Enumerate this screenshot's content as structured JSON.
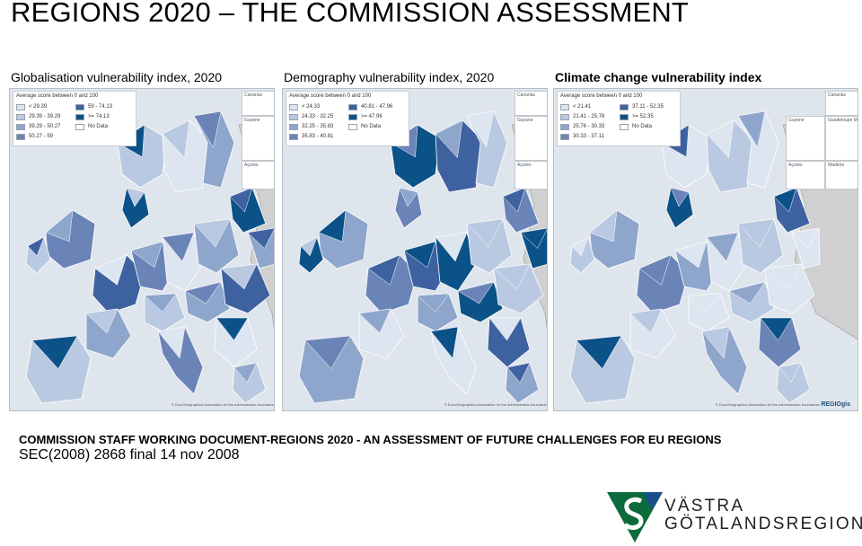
{
  "slide": {
    "title": "REGIONS 2020 – THE COMMISSION ASSESSMENT",
    "document_title": "COMMISSION STAFF WORKING DOCUMENT-REGIONS 2020 - AN ASSESSMENT OF FUTURE CHALLENGES FOR EU REGIONS",
    "document_reference": "SEC(2008) 2868 final 14 nov 2008"
  },
  "colors": {
    "class1": "#dde5f1",
    "class2": "#b9c9e2",
    "class3": "#8fa6cc",
    "class4": "#6a84b8",
    "class5": "#3e62a0",
    "class6": "#0b5288",
    "nodata": "#ffffff",
    "non_eu": "#d0d0d0",
    "sea": "#dfe5ec"
  },
  "maps": [
    {
      "title": "Globalisation vulnerability index, 2020",
      "bold": false,
      "legend_title": "Average score between 0 and 100",
      "legend": [
        {
          "label": "< 29.39",
          "class": "class1"
        },
        {
          "label": "59 - 74.13",
          "class": "class5"
        },
        {
          "label": "29.39 - 39.29",
          "class": "class2"
        },
        {
          "label": ">= 74.13",
          "class": "class6"
        },
        {
          "label": "39.29 - 50.27",
          "class": "class3"
        },
        {
          "label": "No Data",
          "class": "nodata"
        },
        {
          "label": "50.27 - 59",
          "class": "class4"
        }
      ],
      "insets": [
        "Canarias",
        "Guyane",
        "Açores"
      ],
      "copyright": "© EuroGeographics Association for the administrative boundaries",
      "logo": "",
      "fill_pattern": [
        2,
        1,
        3,
        4,
        2,
        5,
        3,
        2,
        4,
        1,
        3,
        6,
        2,
        4,
        3,
        5,
        1,
        2,
        6,
        3,
        4,
        2,
        5,
        3,
        1,
        4,
        2,
        6,
        3,
        2,
        5,
        4,
        1,
        3,
        2,
        6,
        4,
        3,
        2,
        5
      ]
    },
    {
      "title": "Demography vulnerability index, 2020",
      "bold": false,
      "legend_title": "Average score between 0 and 100",
      "legend": [
        {
          "label": "< 24.33",
          "class": "class1"
        },
        {
          "label": "40.81 - 47.96",
          "class": "class5"
        },
        {
          "label": "24.33 - 32.25",
          "class": "class2"
        },
        {
          "label": ">= 47.96",
          "class": "class6"
        },
        {
          "label": "32.25 - 35.83",
          "class": "class3"
        },
        {
          "label": "No Data",
          "class": "nodata"
        },
        {
          "label": "35.83 - 40.81",
          "class": "class4"
        }
      ],
      "insets": [
        "Canarias",
        "Guyane",
        "Açores"
      ],
      "copyright": "© EuroGeographics Association for the administrative boundaries",
      "logo": "",
      "fill_pattern": [
        6,
        5,
        2,
        3,
        6,
        4,
        1,
        3,
        5,
        6,
        2,
        4,
        3,
        1,
        6,
        2,
        5,
        3,
        4,
        6,
        1,
        2,
        5,
        3,
        6,
        4,
        2,
        1,
        5,
        3,
        6,
        2,
        4,
        5,
        1,
        3,
        6,
        2,
        3,
        4
      ]
    },
    {
      "title": "Climate change vulnerability index",
      "bold": true,
      "legend_title": "Average score between 0 and 100",
      "legend": [
        {
          "label": "< 21.41",
          "class": "class1"
        },
        {
          "label": "37.11 - 52.35",
          "class": "class5"
        },
        {
          "label": "21.41 - 25.76",
          "class": "class2"
        },
        {
          "label": ">= 52.35",
          "class": "class6"
        },
        {
          "label": "25.76 - 30.33",
          "class": "class3"
        },
        {
          "label": "No Data",
          "class": "nodata"
        },
        {
          "label": "30.33 - 37.11",
          "class": "class4"
        }
      ],
      "insets": [
        "Canarias",
        "Guyane",
        "Guadeloupe Martinique",
        "Açores",
        "Madeira"
      ],
      "copyright": "© EuroGeographics Association for the administrative boundaries",
      "logo": "REGIOgis",
      "fill_pattern": [
        1,
        2,
        1,
        3,
        2,
        4,
        1,
        2,
        3,
        1,
        2,
        5,
        1,
        3,
        2,
        1,
        4,
        2,
        6,
        1,
        3,
        2,
        6,
        1,
        2,
        3,
        1,
        6,
        2,
        4,
        1,
        2,
        6,
        3,
        1,
        2,
        4,
        6,
        2,
        1
      ]
    }
  ],
  "logo": {
    "line1": "VÄSTRA",
    "line2": "GÖTALANDSREGIONEN",
    "mark_color": "#0b6b3a",
    "mark_accent": "#1a4f8c"
  }
}
